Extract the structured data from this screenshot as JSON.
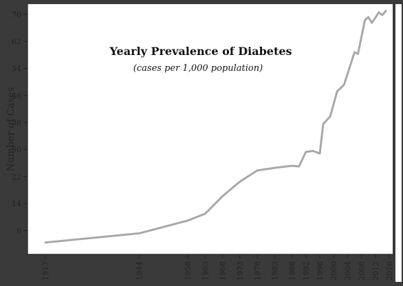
{
  "chart_data": {
    "type": "line",
    "title": "Yearly Prevalence of Diabetes",
    "subtitle": "(cases per 1,000 population)",
    "ylabel": "Number of Cases",
    "xlabel": "",
    "xlim": [
      1917,
      2016
    ],
    "ylim": [
      0,
      71
    ],
    "grid": false,
    "yticks": [
      6,
      14,
      22,
      30,
      38,
      46,
      54,
      62,
      70
    ],
    "xticks": [
      1917,
      1944,
      1958,
      1963,
      1968,
      1973,
      1978,
      1983,
      1988,
      1992,
      1996,
      2000,
      2004,
      2008,
      2012,
      2016
    ],
    "series": [
      {
        "color": "#a8a8a8",
        "x": [
          1917,
          1944,
          1958,
          1963,
          1968,
          1973,
          1978,
          1983,
          1988,
          1990,
          1992,
          1994,
          1996,
          1997,
          1999,
          2001,
          2003,
          2006,
          2007,
          2009,
          2010,
          2011,
          2012,
          2013,
          2014,
          2015
        ],
        "y": [
          2.5,
          5.2,
          9,
          11,
          16.2,
          20.5,
          23.8,
          24.6,
          25.2,
          25,
          29.3,
          29.6,
          28.8,
          37.6,
          39.8,
          47.2,
          49.2,
          58.8,
          58.3,
          68.3,
          69.2,
          67.5,
          69,
          70.6,
          69.8,
          71
        ]
      }
    ]
  }
}
